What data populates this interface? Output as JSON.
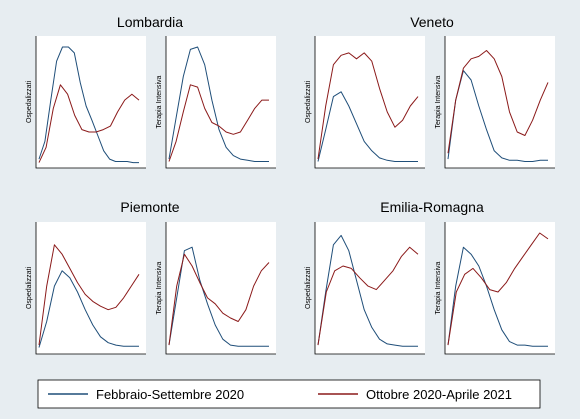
{
  "colors": {
    "background": "#e7edf1",
    "plot_bg": "#ffffff",
    "axis": "#000000",
    "series1": "#1f4e79",
    "series2": "#8b1a1a",
    "legend_bg": "#ffffff"
  },
  "legend": {
    "items": [
      {
        "label": "Febbraio-Settembre 2020",
        "color": "#1f4e79"
      },
      {
        "label": "Ottobre 2020-Aprile 2021",
        "color": "#8b1a1a"
      }
    ]
  },
  "chart_data": [
    {
      "type": "line",
      "region": "Lombardia",
      "ylabel": "Ospedalizzati",
      "grid": false,
      "series": [
        {
          "values": [
            0.05,
            0.2,
            0.55,
            0.88,
            1.0,
            1.0,
            0.95,
            0.7,
            0.5,
            0.38,
            0.25,
            0.12,
            0.05,
            0.03,
            0.03,
            0.03,
            0.02,
            0.02
          ]
        },
        {
          "values": [
            0.02,
            0.15,
            0.48,
            0.68,
            0.6,
            0.42,
            0.3,
            0.28,
            0.28,
            0.3,
            0.33,
            0.45,
            0.55,
            0.6,
            0.55
          ]
        }
      ]
    },
    {
      "type": "line",
      "region": "Lombardia",
      "ylabel": "Terapia Intensiva",
      "grid": false,
      "series": [
        {
          "values": [
            0.05,
            0.4,
            0.75,
            0.98,
            1.0,
            0.85,
            0.55,
            0.3,
            0.15,
            0.08,
            0.05,
            0.04,
            0.03,
            0.03,
            0.03
          ]
        },
        {
          "values": [
            0.03,
            0.2,
            0.45,
            0.68,
            0.66,
            0.48,
            0.36,
            0.33,
            0.28,
            0.26,
            0.28,
            0.38,
            0.48,
            0.55,
            0.55
          ]
        }
      ]
    },
    {
      "type": "line",
      "region": "Veneto",
      "ylabel": "Ospedalizzati",
      "grid": false,
      "series": [
        {
          "values": [
            0.03,
            0.3,
            0.58,
            0.62,
            0.5,
            0.35,
            0.2,
            0.12,
            0.06,
            0.04,
            0.03,
            0.03,
            0.03,
            0.03
          ]
        },
        {
          "values": [
            0.05,
            0.5,
            0.85,
            0.93,
            0.95,
            0.9,
            0.95,
            0.88,
            0.65,
            0.45,
            0.32,
            0.38,
            0.5,
            0.58
          ]
        }
      ]
    },
    {
      "type": "line",
      "region": "Veneto",
      "ylabel": "Terapia Intensiva",
      "grid": false,
      "series": [
        {
          "values": [
            0.05,
            0.55,
            0.8,
            0.72,
            0.5,
            0.3,
            0.12,
            0.06,
            0.04,
            0.04,
            0.03,
            0.03,
            0.04,
            0.04
          ]
        },
        {
          "values": [
            0.1,
            0.55,
            0.82,
            0.9,
            0.92,
            0.97,
            0.9,
            0.75,
            0.45,
            0.28,
            0.25,
            0.38,
            0.55,
            0.7
          ]
        }
      ]
    },
    {
      "type": "line",
      "region": "Piemonte",
      "ylabel": "Ospedalizzati",
      "grid": false,
      "series": [
        {
          "values": [
            0.03,
            0.25,
            0.55,
            0.68,
            0.62,
            0.5,
            0.35,
            0.22,
            0.12,
            0.07,
            0.05,
            0.04,
            0.04,
            0.04
          ]
        },
        {
          "values": [
            0.05,
            0.55,
            0.9,
            0.82,
            0.7,
            0.58,
            0.48,
            0.42,
            0.38,
            0.35,
            0.37,
            0.45,
            0.55,
            0.65
          ]
        }
      ]
    },
    {
      "type": "line",
      "region": "Piemonte",
      "ylabel": "Terapia Intensiva",
      "grid": false,
      "series": [
        {
          "values": [
            0.05,
            0.45,
            0.85,
            0.88,
            0.6,
            0.4,
            0.22,
            0.1,
            0.05,
            0.04,
            0.04,
            0.04,
            0.04,
            0.04
          ]
        },
        {
          "values": [
            0.05,
            0.55,
            0.82,
            0.72,
            0.58,
            0.45,
            0.4,
            0.32,
            0.28,
            0.25,
            0.35,
            0.55,
            0.68,
            0.75
          ]
        }
      ]
    },
    {
      "type": "line",
      "region": "Emilia-Romagna",
      "ylabel": "Ospedalizzati",
      "grid": false,
      "series": [
        {
          "values": [
            0.05,
            0.5,
            0.9,
            0.98,
            0.85,
            0.6,
            0.35,
            0.2,
            0.1,
            0.06,
            0.05,
            0.04,
            0.04,
            0.04
          ]
        },
        {
          "values": [
            0.05,
            0.5,
            0.68,
            0.72,
            0.7,
            0.62,
            0.55,
            0.52,
            0.6,
            0.68,
            0.8,
            0.88,
            0.82
          ]
        }
      ]
    },
    {
      "type": "line",
      "region": "Emilia-Romagna",
      "ylabel": "Terapia Intensiva",
      "grid": false,
      "series": [
        {
          "values": [
            0.05,
            0.55,
            0.88,
            0.82,
            0.72,
            0.55,
            0.35,
            0.18,
            0.08,
            0.05,
            0.05,
            0.04,
            0.04,
            0.04
          ]
        },
        {
          "values": [
            0.05,
            0.5,
            0.65,
            0.7,
            0.62,
            0.52,
            0.5,
            0.58,
            0.7,
            0.8,
            0.9,
            1.0,
            0.95
          ]
        }
      ]
    }
  ]
}
